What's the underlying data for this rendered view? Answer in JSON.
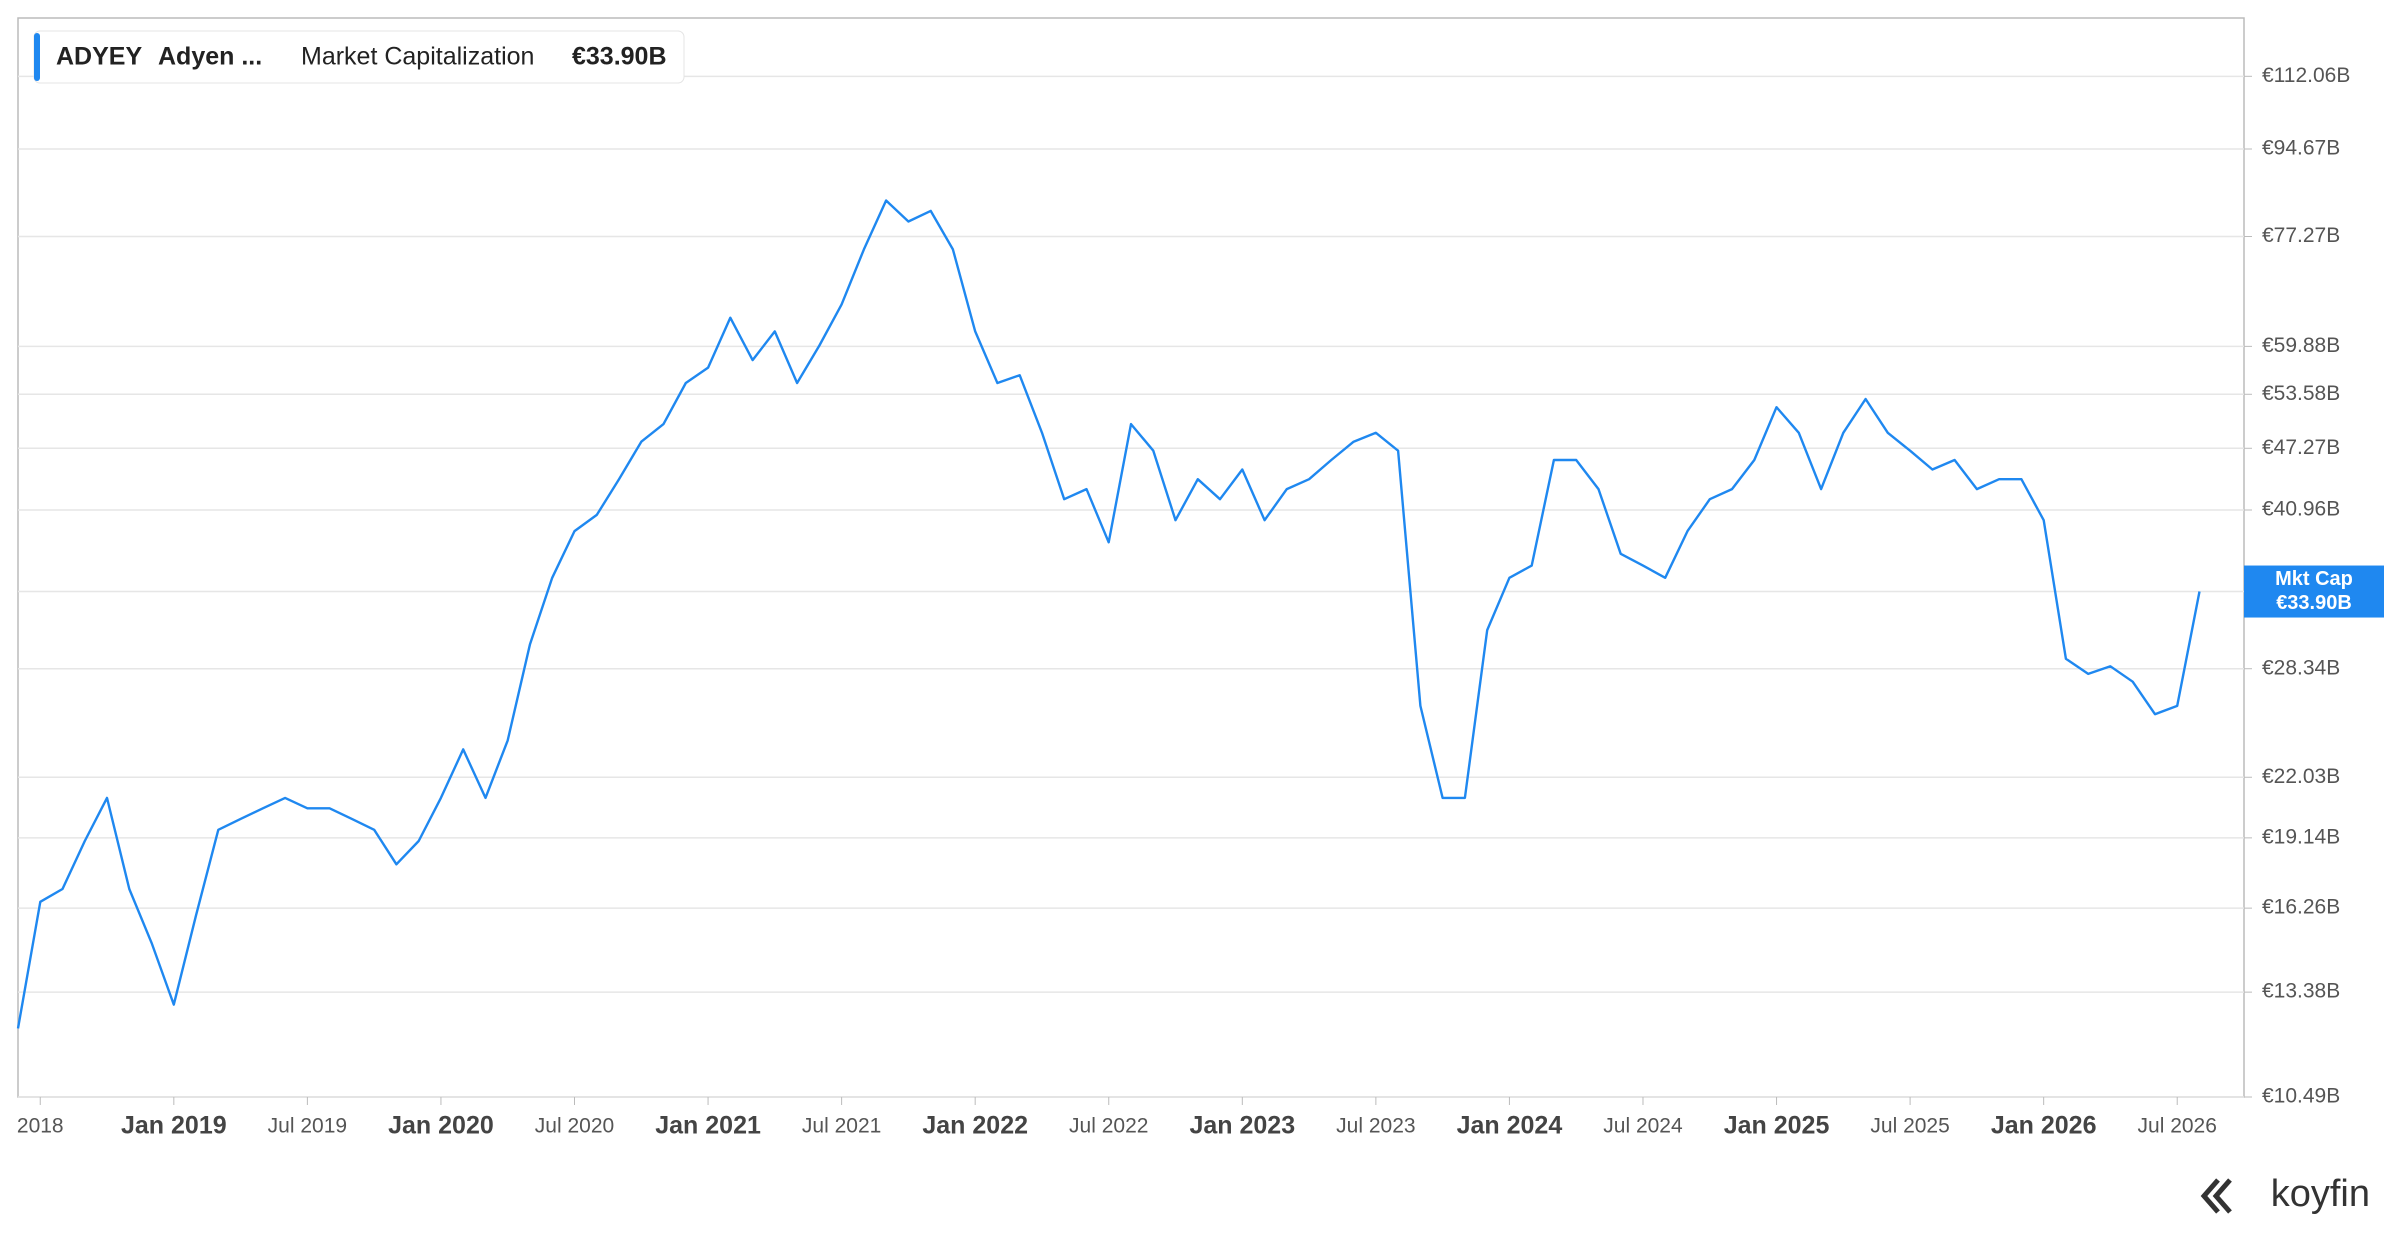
{
  "header": {
    "ticker": "ADYEY",
    "name": "Adyen ...",
    "metric": "Market Capitalization",
    "value": "€33.90B"
  },
  "logo": "koyfin",
  "chart_data": {
    "type": "line",
    "log_scale": true,
    "grid": true,
    "tag_label": "Mkt Cap",
    "x": [
      "2018-06",
      "2018-07",
      "2018-08",
      "2018-09",
      "2018-10",
      "2018-11",
      "2018-12",
      "2019-01",
      "2019-02",
      "2019-03",
      "2019-04",
      "2019-05",
      "2019-06",
      "2019-07",
      "2019-08",
      "2019-09",
      "2019-10",
      "2019-11",
      "2019-12",
      "2020-01",
      "2020-02",
      "2020-03",
      "2020-04",
      "2020-05",
      "2020-06",
      "2020-07",
      "2020-08",
      "2020-09",
      "2020-10",
      "2020-11",
      "2020-12",
      "2021-01",
      "2021-02",
      "2021-03",
      "2021-04",
      "2021-05",
      "2021-06",
      "2021-07",
      "2021-08",
      "2021-09",
      "2021-10",
      "2021-11",
      "2021-12",
      "2022-01",
      "2022-02",
      "2022-03",
      "2022-04",
      "2022-05",
      "2022-06",
      "2022-07",
      "2022-08",
      "2022-09",
      "2022-10",
      "2022-11",
      "2022-12",
      "2023-01",
      "2023-02",
      "2023-03",
      "2023-04",
      "2023-05",
      "2023-06",
      "2023-07",
      "2023-08",
      "2023-09",
      "2023-10",
      "2023-11",
      "2023-12",
      "2024-01",
      "2024-02",
      "2024-03",
      "2024-04",
      "2024-05",
      "2024-06",
      "2024-07",
      "2024-08",
      "2024-09",
      "2024-10",
      "2024-11",
      "2024-12",
      "2025-01",
      "2025-02",
      "2025-03",
      "2025-04",
      "2025-05",
      "2025-06",
      "2025-07",
      "2025-08",
      "2025-09",
      "2025-10",
      "2025-11",
      "2025-12",
      "2026-01",
      "2026-02",
      "2026-03",
      "2026-04",
      "2026-05",
      "2026-06",
      "2026-07",
      "2026-08"
    ],
    "series": [
      {
        "name": "Market Capitalization",
        "color": "#1f88f0",
        "values": [
          12.3,
          16.5,
          17,
          19,
          21,
          17,
          15,
          13,
          16,
          19.5,
          20,
          20.5,
          21,
          20.5,
          20.5,
          20,
          19.5,
          18,
          19,
          21,
          23.5,
          21,
          24,
          30,
          35,
          39,
          40.5,
          44,
          48,
          50,
          55,
          57,
          64,
          58,
          62,
          55,
          60,
          66,
          75,
          84,
          80,
          82,
          75,
          62,
          55,
          56,
          49,
          42,
          43,
          38,
          50,
          47,
          40,
          44,
          42,
          45,
          40,
          43,
          44,
          46,
          48,
          49,
          47,
          26,
          21,
          21,
          31,
          35,
          36,
          46,
          46,
          43,
          37,
          36,
          35,
          39,
          42,
          43,
          46,
          52,
          49,
          43,
          49,
          53,
          49,
          47,
          45,
          46,
          43,
          44,
          44,
          40,
          29,
          28,
          28.5,
          27.5,
          25.5,
          26,
          33.9
        ]
      }
    ],
    "xlim": [
      "2018-06",
      "2026-10"
    ],
    "ylim": [
      10.49,
      128.3
    ],
    "yticks": [
      {
        "value": 10.49,
        "label": "€10.49B"
      },
      {
        "value": 13.38,
        "label": "€13.38B"
      },
      {
        "value": 16.26,
        "label": "€16.26B"
      },
      {
        "value": 19.14,
        "label": "€19.14B"
      },
      {
        "value": 22.03,
        "label": "€22.03B"
      },
      {
        "value": 28.34,
        "label": "€28.34B"
      },
      {
        "value": 33.9,
        "label": ""
      },
      {
        "value": 40.96,
        "label": "€40.96B"
      },
      {
        "value": 47.27,
        "label": "€47.27B"
      },
      {
        "value": 53.58,
        "label": "€53.58B"
      },
      {
        "value": 59.88,
        "label": "€59.88B"
      },
      {
        "value": 77.27,
        "label": "€77.27B"
      },
      {
        "value": 94.67,
        "label": "€94.67B"
      },
      {
        "value": 112.06,
        "label": "€112.06B"
      }
    ],
    "xticks": [
      {
        "value": "2018-07",
        "label": "2018"
      },
      {
        "value": "2019-01",
        "label": "Jan 2019"
      },
      {
        "value": "2019-07",
        "label": "Jul 2019"
      },
      {
        "value": "2020-01",
        "label": "Jan 2020"
      },
      {
        "value": "2020-07",
        "label": "Jul 2020"
      },
      {
        "value": "2021-01",
        "label": "Jan 2021"
      },
      {
        "value": "2021-07",
        "label": "Jul 2021"
      },
      {
        "value": "2022-01",
        "label": "Jan 2022"
      },
      {
        "value": "2022-07",
        "label": "Jul 2022"
      },
      {
        "value": "2023-01",
        "label": "Jan 2023"
      },
      {
        "value": "2023-07",
        "label": "Jul 2023"
      },
      {
        "value": "2024-01",
        "label": "Jan 2024"
      },
      {
        "value": "2024-07",
        "label": "Jul 2024"
      },
      {
        "value": "2025-01",
        "label": "Jan 2025"
      },
      {
        "value": "2025-07",
        "label": "Jul 2025"
      },
      {
        "value": "2026-01",
        "label": "Jan 2026"
      },
      {
        "value": "2026-07",
        "label": "Jul 2026"
      }
    ]
  }
}
